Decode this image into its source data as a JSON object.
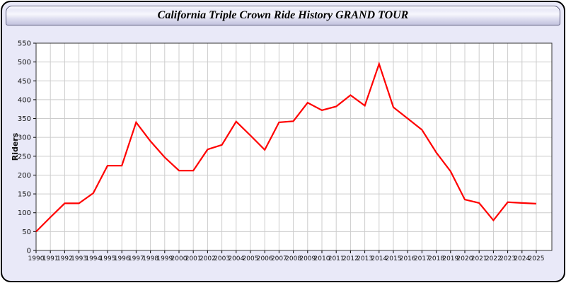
{
  "window": {
    "title": "California Triple Crown Ride History GRAND TOUR",
    "colors": {
      "page_bg": "#e9e9f8",
      "outer_border": "#000000",
      "titlebar_border": "#5a5a7d"
    }
  },
  "chart_data": {
    "type": "line",
    "title": "California Triple Crown Ride History GRAND TOUR",
    "xlabel": "",
    "ylabel": "Riders",
    "x": [
      1990,
      1991,
      1992,
      1993,
      1994,
      1995,
      1996,
      1997,
      1998,
      1999,
      2000,
      2001,
      2002,
      2003,
      2004,
      2005,
      2006,
      2007,
      2008,
      2009,
      2010,
      2011,
      2012,
      2013,
      2014,
      2015,
      2016,
      2017,
      2018,
      2019,
      2020,
      2021,
      2022,
      2023,
      2024,
      2025
    ],
    "series": [
      {
        "name": "Riders",
        "color": "#ff0000",
        "values": [
          50,
          88,
          125,
          125,
          152,
          225,
          225,
          340,
          290,
          247,
          212,
          212,
          268,
          280,
          342,
          305,
          267,
          340,
          343,
          392,
          372,
          382,
          412,
          384,
          495,
          380,
          350,
          320,
          260,
          210,
          135,
          126,
          80,
          128,
          126,
          124
        ]
      }
    ],
    "ylim": [
      0,
      550
    ],
    "ytick_step": 50,
    "grid": true,
    "legend": "none",
    "plot_bg": "#ffffff",
    "grid_color": "#cccccc",
    "frame_color": "#333333",
    "tick_label_color": "#111111"
  }
}
